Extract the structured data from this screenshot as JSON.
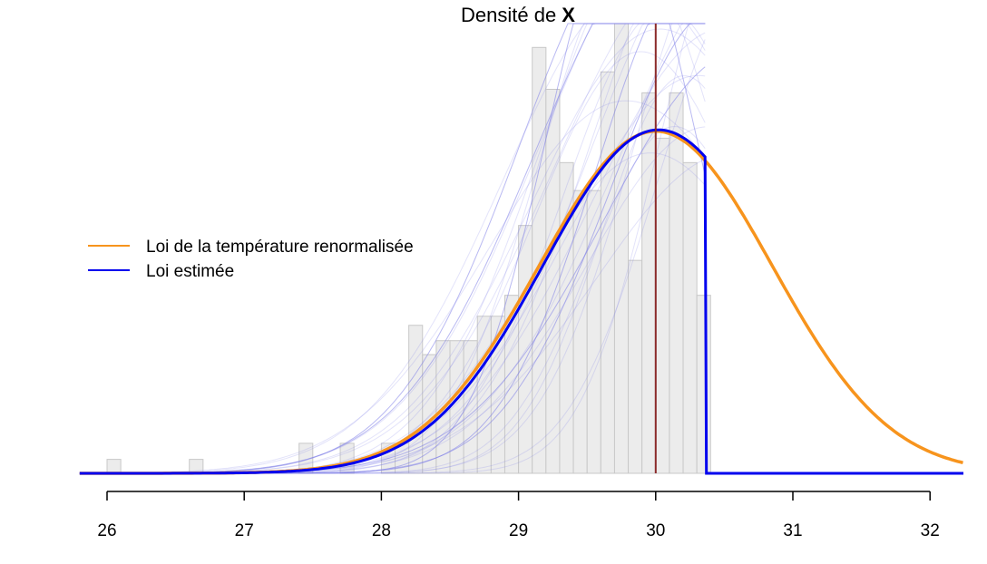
{
  "chart_data": {
    "type": "histogram-with-density",
    "title_prefix": "Densité de ",
    "title_symbol": "X",
    "xlabel": "",
    "ylabel": "",
    "xlim": [
      25.8,
      32.25
    ],
    "ylim": [
      0,
      0.53
    ],
    "x_ticks": [
      "26",
      "27",
      "28",
      "29",
      "30",
      "31",
      "32"
    ],
    "vline_x": 30,
    "truncation_x": 30.37,
    "histogram": {
      "bin_width": 0.1,
      "bins": [
        {
          "x": 26.0,
          "y": 0.02
        },
        {
          "x": 26.6,
          "y": 0.02
        },
        {
          "x": 27.4,
          "y": 0.043
        },
        {
          "x": 27.7,
          "y": 0.043
        },
        {
          "x": 28.0,
          "y": 0.043
        },
        {
          "x": 28.1,
          "y": 0.043
        },
        {
          "x": 28.2,
          "y": 0.212
        },
        {
          "x": 28.3,
          "y": 0.17
        },
        {
          "x": 28.4,
          "y": 0.19
        },
        {
          "x": 28.5,
          "y": 0.19
        },
        {
          "x": 28.6,
          "y": 0.19
        },
        {
          "x": 28.7,
          "y": 0.225
        },
        {
          "x": 28.8,
          "y": 0.225
        },
        {
          "x": 28.9,
          "y": 0.255
        },
        {
          "x": 29.0,
          "y": 0.355
        },
        {
          "x": 29.1,
          "y": 0.61
        },
        {
          "x": 29.2,
          "y": 0.55
        },
        {
          "x": 29.3,
          "y": 0.445
        },
        {
          "x": 29.4,
          "y": 0.405
        },
        {
          "x": 29.5,
          "y": 0.405
        },
        {
          "x": 29.6,
          "y": 0.575
        },
        {
          "x": 29.7,
          "y": 0.695
        },
        {
          "x": 29.8,
          "y": 0.305
        },
        {
          "x": 29.9,
          "y": 0.545
        },
        {
          "x": 30.0,
          "y": 0.48
        },
        {
          "x": 30.1,
          "y": 0.545
        },
        {
          "x": 30.2,
          "y": 0.445
        },
        {
          "x": 30.3,
          "y": 0.255
        }
      ]
    },
    "series": [
      {
        "name": "Loi de la température renormalisée",
        "color": "#f7941d",
        "mean": 30.0,
        "sd": 0.85,
        "peak": 0.49,
        "truncated": false
      },
      {
        "name": "Loi estimée",
        "color": "#0000ee",
        "mean": 30.02,
        "sd": 0.84,
        "peak": 0.492,
        "truncated": true
      }
    ],
    "bootstrap_curve_color": "#8080e8",
    "vline_color": "#8b2a2a",
    "legend_placement": "left-middle",
    "grid": false
  }
}
